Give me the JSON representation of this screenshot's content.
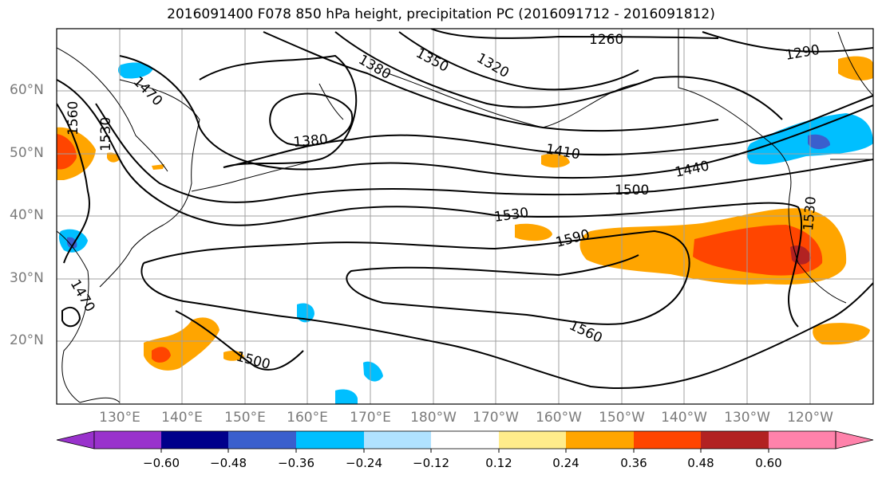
{
  "title": "2016091400 F078 850 hPa height, precipitation PC (2016091712 - 2016091812)",
  "lat_labels": [
    "60°N",
    "50°N",
    "40°N",
    "30°N",
    "20°N"
  ],
  "lon_labels": [
    "130°E",
    "140°E",
    "150°E",
    "160°E",
    "170°E",
    "180°W",
    "170°W",
    "160°W",
    "150°W",
    "140°W",
    "130°W",
    "120°W"
  ],
  "contour_labels": [
    "1260",
    "1290",
    "1320",
    "1350",
    "1380",
    "1380",
    "1410",
    "1440",
    "1470",
    "1470",
    "1500",
    "1500",
    "1530",
    "1530",
    "1530",
    "1560",
    "1560",
    "1590"
  ],
  "colorbar": {
    "ticks": [
      "−0.60",
      "−0.48",
      "−0.36",
      "−0.24",
      "−0.12",
      "0.12",
      "0.24",
      "0.36",
      "0.48",
      "0.60"
    ],
    "colors": [
      "#9932CC",
      "#00008B",
      "#3A5FCD",
      "#00BFFF",
      "#B0E2FF",
      "#FFFFFF",
      "#FFEC8B",
      "#FFA500",
      "#FF4500",
      "#B22222",
      "#FF82AB"
    ]
  }
}
